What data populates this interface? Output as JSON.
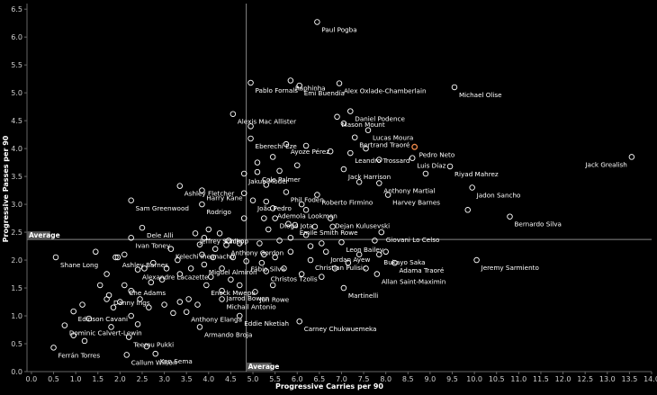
{
  "chart_data": {
    "type": "scatter",
    "xlabel": "Progressive Carries per 90",
    "ylabel": "Progressive Passes per 90",
    "xlim": [
      -0.1,
      14.0
    ],
    "ylim": [
      0.0,
      6.6
    ],
    "xticks": [
      "0.0",
      "0.5",
      "1.0",
      "1.5",
      "2.0",
      "2.5",
      "3.0",
      "3.5",
      "4.0",
      "4.5",
      "5.0",
      "5.5",
      "6.0",
      "6.5",
      "7.0",
      "7.5",
      "8.0",
      "8.5",
      "9.0",
      "9.5",
      "10.0",
      "10.5",
      "11.0",
      "11.5",
      "12.0",
      "12.5",
      "13.0",
      "13.5",
      "14.0"
    ],
    "yticks": [
      "0.0",
      "0.5",
      "1.0",
      "1.5",
      "2.0",
      "2.5",
      "3.0",
      "3.5",
      "4.0",
      "4.5",
      "5.0",
      "5.5",
      "6.0",
      "6.5"
    ],
    "grid": false,
    "average": {
      "x": 4.85,
      "y": 2.37,
      "x_label": "Average",
      "y_label": "Average"
    },
    "colors": {
      "background": "#000000",
      "point": "#ffffff",
      "highlight": "#f08a4b",
      "avg_line": "#888888"
    },
    "labeled_points": [
      {
        "name": "Paul Pogba",
        "x": 6.45,
        "y": 6.27
      },
      {
        "name": "Raphinha",
        "x": 5.85,
        "y": 5.22
      },
      {
        "name": "Pablo Fornals",
        "x": 4.95,
        "y": 5.18
      },
      {
        "name": "Emi Buendía",
        "x": 6.05,
        "y": 5.13
      },
      {
        "name": "Alex Oxlade-Chamberlain",
        "x": 6.95,
        "y": 5.17
      },
      {
        "name": "Michael Olise",
        "x": 9.55,
        "y": 5.1
      },
      {
        "name": "Alexis Mac Allister",
        "x": 4.55,
        "y": 4.62
      },
      {
        "name": "Daniel Podence",
        "x": 7.2,
        "y": 4.67
      },
      {
        "name": "Mason Mount",
        "x": 6.9,
        "y": 4.57
      },
      {
        "name": "Lucas Moura",
        "x": 7.6,
        "y": 4.33
      },
      {
        "name": "Bertrand Traoré",
        "x": 7.3,
        "y": 4.2
      },
      {
        "name": "Pedro Neto",
        "x": 8.65,
        "y": 4.03,
        "highlight": true
      },
      {
        "name": "Eberechi Eze",
        "x": 4.95,
        "y": 4.18
      },
      {
        "name": "Ayoze Pérez",
        "x": 5.75,
        "y": 4.08
      },
      {
        "name": "Jack Grealish",
        "x": 13.55,
        "y": 3.85
      },
      {
        "name": "Leandro Trossard",
        "x": 7.2,
        "y": 3.92
      },
      {
        "name": "Luis Díaz",
        "x": 8.6,
        "y": 3.83
      },
      {
        "name": "Riyad Mahrez",
        "x": 9.45,
        "y": 3.68
      },
      {
        "name": "Cole Palmer",
        "x": 5.1,
        "y": 3.58
      },
      {
        "name": "Jack Harrison",
        "x": 7.05,
        "y": 3.63
      },
      {
        "name": "Jakub Moder",
        "x": 4.8,
        "y": 3.55
      },
      {
        "name": "Ashley Fletcher",
        "x": 3.35,
        "y": 3.33
      },
      {
        "name": "Anthony Martial",
        "x": 7.85,
        "y": 3.38
      },
      {
        "name": "Jadon Sancho",
        "x": 9.95,
        "y": 3.3
      },
      {
        "name": "Harry Kane",
        "x": 3.85,
        "y": 3.25
      },
      {
        "name": "Phil Foden",
        "x": 5.75,
        "y": 3.22
      },
      {
        "name": "Roberto Firmino",
        "x": 6.45,
        "y": 3.17
      },
      {
        "name": "Harvey Barnes",
        "x": 8.05,
        "y": 3.17
      },
      {
        "name": "Sam Greenwood",
        "x": 2.25,
        "y": 3.07
      },
      {
        "name": "João Pedro",
        "x": 5.0,
        "y": 3.07
      },
      {
        "name": "Rodrigo",
        "x": 3.85,
        "y": 3.0
      },
      {
        "name": "Ademola Lookman",
        "x": 5.45,
        "y": 2.93
      },
      {
        "name": "Dejan Kulusevski",
        "x": 6.75,
        "y": 2.75
      },
      {
        "name": "Bernardo Silva",
        "x": 10.8,
        "y": 2.78
      },
      {
        "name": "Diogo Jota",
        "x": 5.5,
        "y": 2.75
      },
      {
        "name": "Dele Alli",
        "x": 2.5,
        "y": 2.58
      },
      {
        "name": "Emile Smith Rowe",
        "x": 5.95,
        "y": 2.63
      },
      {
        "name": "Jeffrey Schlupp",
        "x": 3.7,
        "y": 2.48
      },
      {
        "name": "Cucho",
        "x": 4.25,
        "y": 2.48
      },
      {
        "name": "Giovani Lo Celso",
        "x": 7.9,
        "y": 2.5
      },
      {
        "name": "Ivan Toney",
        "x": 2.25,
        "y": 2.4
      },
      {
        "name": "Leon Bailey",
        "x": 7.0,
        "y": 2.32
      },
      {
        "name": "Anthony Gordon",
        "x": 4.4,
        "y": 2.27
      },
      {
        "name": "Kelechi Iheanacho",
        "x": 3.15,
        "y": 2.2
      },
      {
        "name": "Jordan Ayew",
        "x": 6.65,
        "y": 2.15
      },
      {
        "name": "Bukayo Saka",
        "x": 7.85,
        "y": 2.1
      },
      {
        "name": "Shane Long",
        "x": 0.55,
        "y": 2.05
      },
      {
        "name": "Ashley Barnes",
        "x": 1.95,
        "y": 2.05
      },
      {
        "name": "Christian Pulisic",
        "x": 6.3,
        "y": 2.0
      },
      {
        "name": "Adama Traoré",
        "x": 8.2,
        "y": 1.95
      },
      {
        "name": "Jeremy Sarmiento",
        "x": 10.05,
        "y": 2.0
      },
      {
        "name": "Fábio Silva",
        "x": 4.85,
        "y": 1.98
      },
      {
        "name": "Miguel Almirón",
        "x": 3.9,
        "y": 1.92
      },
      {
        "name": "Alexandre Lacazette",
        "x": 2.4,
        "y": 1.83
      },
      {
        "name": "Christos Tzolis",
        "x": 5.3,
        "y": 1.8
      },
      {
        "name": "Allan Saint-Maximin",
        "x": 7.8,
        "y": 1.75
      },
      {
        "name": "Che Adams",
        "x": 2.1,
        "y": 1.55
      },
      {
        "name": "Enock Mwepu",
        "x": 3.95,
        "y": 1.55
      },
      {
        "name": "Jarrod Bowen",
        "x": 4.3,
        "y": 1.45
      },
      {
        "name": "Jon Rowe",
        "x": 5.05,
        "y": 1.43
      },
      {
        "name": "Danny Ings",
        "x": 1.75,
        "y": 1.37
      },
      {
        "name": "Martinelli",
        "x": 7.05,
        "y": 1.5
      },
      {
        "name": "Michail Antonio",
        "x": 4.3,
        "y": 1.3
      },
      {
        "name": "Edinson Cavani",
        "x": 0.95,
        "y": 1.08
      },
      {
        "name": "Anthony Elanga",
        "x": 3.5,
        "y": 1.07
      },
      {
        "name": "Eddie Nketiah",
        "x": 4.7,
        "y": 1.0
      },
      {
        "name": "Carney Chukwuemeka",
        "x": 6.05,
        "y": 0.9
      },
      {
        "name": "Armando Broja",
        "x": 3.8,
        "y": 0.8
      },
      {
        "name": "Dominic Calvert-Lewin",
        "x": 0.75,
        "y": 0.83
      },
      {
        "name": "Teemu Pukki",
        "x": 2.2,
        "y": 0.62
      },
      {
        "name": "Ferrán Torres",
        "x": 0.5,
        "y": 0.43
      },
      {
        "name": "Callum Wilson",
        "x": 2.15,
        "y": 0.3
      },
      {
        "name": "Ken Sema",
        "x": 2.8,
        "y": 0.32
      }
    ],
    "unlabeled_points": [
      [
        1.45,
        2.15
      ],
      [
        1.9,
        2.05
      ],
      [
        2.1,
        2.1
      ],
      [
        1.7,
        1.75
      ],
      [
        2.55,
        1.85
      ],
      [
        2.75,
        1.95
      ],
      [
        1.55,
        1.55
      ],
      [
        2.25,
        1.45
      ],
      [
        2.7,
        1.6
      ],
      [
        2.95,
        1.65
      ],
      [
        1.7,
        1.3
      ],
      [
        2.0,
        1.25
      ],
      [
        2.45,
        1.3
      ],
      [
        2.65,
        1.15
      ],
      [
        1.85,
        1.15
      ],
      [
        2.25,
        1.0
      ],
      [
        1.15,
        1.2
      ],
      [
        1.3,
        0.95
      ],
      [
        1.8,
        0.8
      ],
      [
        2.4,
        0.85
      ],
      [
        0.95,
        0.65
      ],
      [
        1.2,
        0.55
      ],
      [
        2.6,
        0.45
      ],
      [
        3.35,
        1.25
      ],
      [
        3.55,
        1.3
      ],
      [
        3.75,
        1.2
      ],
      [
        3.0,
        1.2
      ],
      [
        3.2,
        1.05
      ],
      [
        3.35,
        1.75
      ],
      [
        3.6,
        1.85
      ],
      [
        3.3,
        2.0
      ],
      [
        3.05,
        1.85
      ],
      [
        3.85,
        2.1
      ],
      [
        4.1,
        2.05
      ],
      [
        4.3,
        1.85
      ],
      [
        4.55,
        2.05
      ],
      [
        4.05,
        1.7
      ],
      [
        4.5,
        1.65
      ],
      [
        4.7,
        1.55
      ],
      [
        4.15,
        2.2
      ],
      [
        3.9,
        2.4
      ],
      [
        4.45,
        2.35
      ],
      [
        4.7,
        2.3
      ],
      [
        5.15,
        2.3
      ],
      [
        5.35,
        2.55
      ],
      [
        5.6,
        2.35
      ],
      [
        5.85,
        2.4
      ],
      [
        6.2,
        2.45
      ],
      [
        6.4,
        2.6
      ],
      [
        6.55,
        2.3
      ],
      [
        5.25,
        2.1
      ],
      [
        5.5,
        2.05
      ],
      [
        5.85,
        2.15
      ],
      [
        5.7,
        1.85
      ],
      [
        5.2,
        1.95
      ],
      [
        5.45,
        1.55
      ],
      [
        6.1,
        1.75
      ],
      [
        6.55,
        1.7
      ],
      [
        6.85,
        1.85
      ],
      [
        7.15,
        1.95
      ],
      [
        7.4,
        2.1
      ],
      [
        7.55,
        1.85
      ],
      [
        7.75,
        2.35
      ],
      [
        8.0,
        2.15
      ],
      [
        4.8,
        2.75
      ],
      [
        4.8,
        3.2
      ],
      [
        5.3,
        3.05
      ],
      [
        5.3,
        3.35
      ],
      [
        6.1,
        3.0
      ],
      [
        5.6,
        3.6
      ],
      [
        7.55,
        4.0
      ],
      [
        7.05,
        4.45
      ],
      [
        6.2,
        4.05
      ],
      [
        6.75,
        3.95
      ],
      [
        7.85,
        3.8
      ],
      [
        9.85,
        2.9
      ],
      [
        6.2,
        2.9
      ],
      [
        5.25,
        2.75
      ],
      [
        5.8,
        2.65
      ],
      [
        6.8,
        2.6
      ],
      [
        4.95,
        4.4
      ],
      [
        5.45,
        3.85
      ],
      [
        6.0,
        3.7
      ],
      [
        7.4,
        3.4
      ],
      [
        8.9,
        3.55
      ],
      [
        4.0,
        2.55
      ],
      [
        6.3,
        2.25
      ],
      [
        5.1,
        3.75
      ],
      [
        3.8,
        2.28
      ]
    ]
  }
}
